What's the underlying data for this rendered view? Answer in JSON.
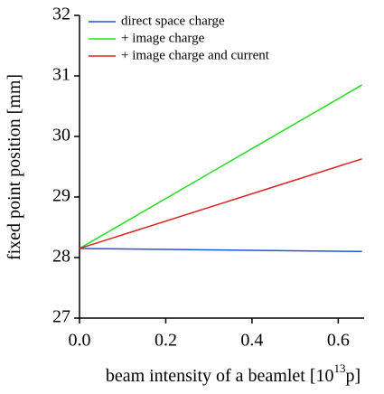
{
  "chart_data": {
    "type": "line",
    "x": [
      0,
      0.655
    ],
    "series": [
      {
        "name": "direct space charge",
        "color": "#2255dd",
        "values": [
          28.15,
          28.1
        ]
      },
      {
        "name": "+ image charge",
        "color": "#22dd22",
        "values": [
          28.15,
          30.85
        ]
      },
      {
        "name": "+ image charge and current",
        "color": "#dd2222",
        "values": [
          28.15,
          29.63
        ]
      }
    ],
    "xlim": [
      0,
      0.66
    ],
    "ylim": [
      27,
      32
    ],
    "xticks": [
      {
        "value": 0,
        "label": "0.0"
      },
      0.2,
      0.4,
      0.6
    ],
    "yticks": [
      27,
      28,
      29,
      30,
      31,
      32
    ],
    "ylabel": "fixed point position [mm]",
    "xlabel": "beam intensity of a beamlet [10",
    "xlabel_sup": "13",
    "xlabel_end": "p]",
    "legend": "upper left"
  }
}
